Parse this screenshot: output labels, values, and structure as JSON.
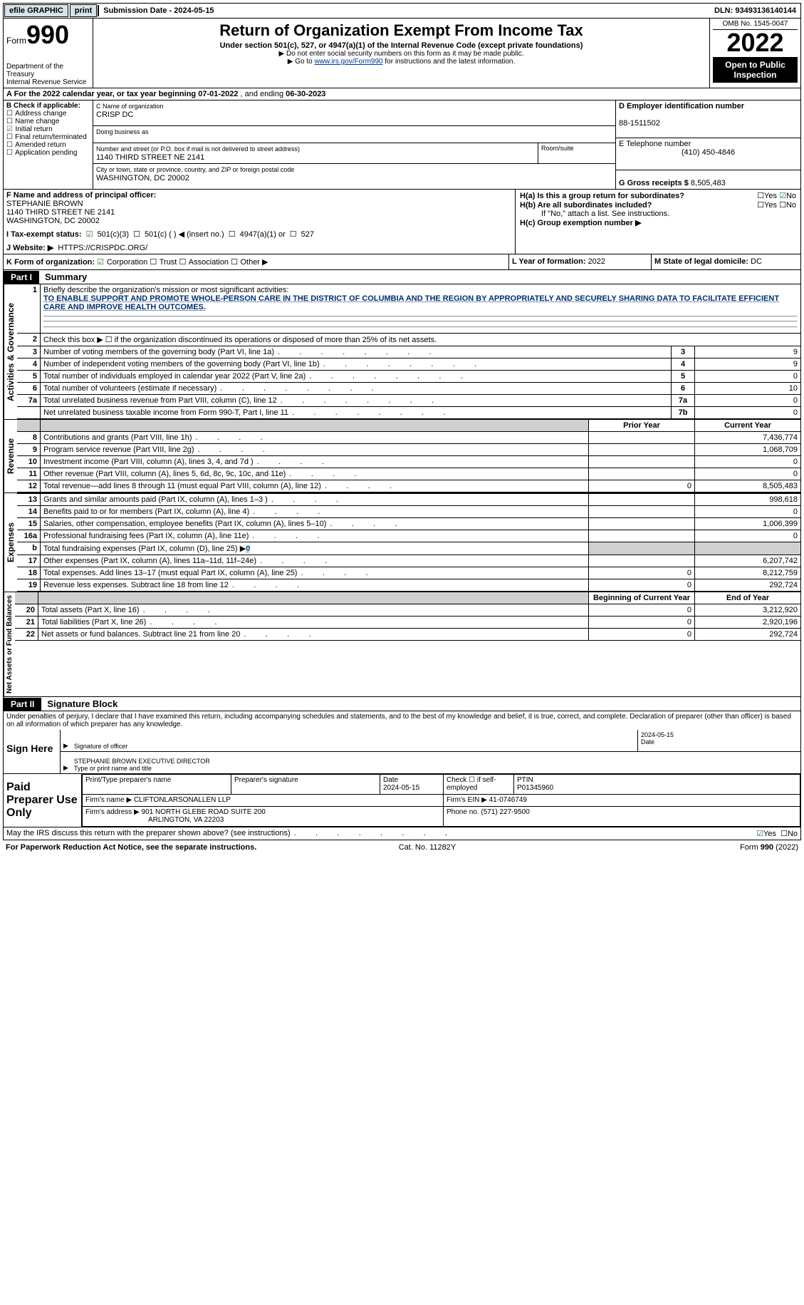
{
  "topbar": {
    "efile": "efile GRAPHIC",
    "print": "print",
    "submission_label": "Submission Date - ",
    "submission_date": "2024-05-15",
    "dln_label": "DLN: ",
    "dln": "93493136140144"
  },
  "header": {
    "form_word": "Form",
    "form_num": "990",
    "dept": "Department of the Treasury",
    "irs": "Internal Revenue Service",
    "title": "Return of Organization Exempt From Income Tax",
    "subtitle": "Under section 501(c), 527, or 4947(a)(1) of the Internal Revenue Code (except private foundations)",
    "note1": "▶ Do not enter social security numbers on this form as it may be made public.",
    "note2_pre": "▶ Go to ",
    "note2_link": "www.irs.gov/Form990",
    "note2_post": " for instructions and the latest information.",
    "omb": "OMB No. 1545-0047",
    "year": "2022",
    "open": "Open to Public Inspection"
  },
  "line_a": {
    "label_pre": "A For the 2022 calendar year, or tax year beginning ",
    "beg": "07-01-2022",
    "mid": " , and ending ",
    "end": "06-30-2023"
  },
  "col_b": {
    "title": "B Check if applicable:",
    "opts": [
      "Address change",
      "Name change",
      "Initial return",
      "Final return/terminated",
      "Amended return",
      "Application pending"
    ],
    "checked_idx": 2
  },
  "col_c": {
    "name_label": "C Name of organization",
    "name": "CRISP DC",
    "dba_label": "Doing business as",
    "street_label": "Number and street (or P.O. box if mail is not delivered to street address)",
    "room_label": "Room/suite",
    "street": "1140 THIRD STREET NE 2141",
    "city_label": "City or town, state or province, country, and ZIP or foreign postal code",
    "city": "WASHINGTON, DC  20002"
  },
  "col_d": {
    "ein_label": "D Employer identification number",
    "ein": "88-1511502",
    "tel_label": "E Telephone number",
    "tel": "(410) 450-4846",
    "gross_label": "G Gross receipts $ ",
    "gross": "8,505,483"
  },
  "row_f": {
    "label": "F Name and address of principal officer:",
    "name": "STEPHANIE BROWN",
    "street": "1140 THIRD STREET NE 2141",
    "city": "WASHINGTON, DC  20002"
  },
  "row_h": {
    "ha": "H(a)  Is this a group return for subordinates?",
    "hb": "H(b)  Are all subordinates included?",
    "hb_note": "If \"No,\" attach a list. See instructions.",
    "hc": "H(c)  Group exemption number ▶",
    "yes": "Yes",
    "no": "No"
  },
  "row_i": {
    "label": "I   Tax-exempt status:",
    "o1": "501(c)(3)",
    "o2": "501(c) (  ) ◀ (insert no.)",
    "o3": "4947(a)(1) or",
    "o4": "527"
  },
  "row_j": {
    "label": "J   Website: ▶",
    "url": "HTTPS://CRISPDC.ORG/"
  },
  "row_k": {
    "label": "K Form of organization:",
    "o1": "Corporation",
    "o2": "Trust",
    "o3": "Association",
    "o4": "Other ▶",
    "l_label": "L Year of formation: ",
    "l_val": "2022",
    "m_label": "M State of legal domicile: ",
    "m_val": "DC"
  },
  "part1": {
    "tag": "Part I",
    "title": "Summary",
    "side1": "Activities & Governance",
    "side2": "Revenue",
    "side3": "Expenses",
    "side4": "Net Assets or Fund Balances",
    "line1_label": "Briefly describe the organization's mission or most significant activities:",
    "line1_text": "TO ENABLE SUPPORT AND PROMOTE WHOLE-PERSON CARE IN THE DISTRICT OF COLUMBIA AND THE REGION BY APPROPRIATELY AND SECURELY SHARING DATA TO FACILITATE EFFICIENT CARE AND IMPROVE HEALTH OUTCOMES.",
    "line2": "Check this box ▶ ☐  if the organization discontinued its operations or disposed of more than 25% of its net assets.",
    "rows_a": [
      {
        "n": "3",
        "label": "Number of voting members of the governing body (Part VI, line 1a)",
        "box": "3",
        "val": "9"
      },
      {
        "n": "4",
        "label": "Number of independent voting members of the governing body (Part VI, line 1b)",
        "box": "4",
        "val": "9"
      },
      {
        "n": "5",
        "label": "Total number of individuals employed in calendar year 2022 (Part V, line 2a)",
        "box": "5",
        "val": "0"
      },
      {
        "n": "6",
        "label": "Total number of volunteers (estimate if necessary)",
        "box": "6",
        "val": "10"
      },
      {
        "n": "7a",
        "label": "Total unrelated business revenue from Part VIII, column (C), line 12",
        "box": "7a",
        "val": "0"
      },
      {
        "n": "",
        "label": "Net unrelated business taxable income from Form 990-T, Part I, line 11",
        "box": "7b",
        "val": "0"
      }
    ],
    "hdr_prior": "Prior Year",
    "hdr_curr": "Current Year",
    "rows_rev": [
      {
        "n": "8",
        "label": "Contributions and grants (Part VIII, line 1h)",
        "prior": "",
        "curr": "7,436,774"
      },
      {
        "n": "9",
        "label": "Program service revenue (Part VIII, line 2g)",
        "prior": "",
        "curr": "1,068,709"
      },
      {
        "n": "10",
        "label": "Investment income (Part VIII, column (A), lines 3, 4, and 7d )",
        "prior": "",
        "curr": "0"
      },
      {
        "n": "11",
        "label": "Other revenue (Part VIII, column (A), lines 5, 6d, 8c, 9c, 10c, and 11e)",
        "prior": "",
        "curr": "0"
      },
      {
        "n": "12",
        "label": "Total revenue—add lines 8 through 11 (must equal Part VIII, column (A), line 12)",
        "prior": "0",
        "curr": "8,505,483"
      }
    ],
    "rows_exp": [
      {
        "n": "13",
        "label": "Grants and similar amounts paid (Part IX, column (A), lines 1–3 )",
        "prior": "",
        "curr": "998,618"
      },
      {
        "n": "14",
        "label": "Benefits paid to or for members (Part IX, column (A), line 4)",
        "prior": "",
        "curr": "0"
      },
      {
        "n": "15",
        "label": "Salaries, other compensation, employee benefits (Part IX, column (A), lines 5–10)",
        "prior": "",
        "curr": "1,006,399"
      },
      {
        "n": "16a",
        "label": "Professional fundraising fees (Part IX, column (A), line 11e)",
        "prior": "",
        "curr": "0"
      },
      {
        "n": "b",
        "label": "Total fundraising expenses (Part IX, column (D), line 25) ▶",
        "inline": "0",
        "shade": true
      },
      {
        "n": "17",
        "label": "Other expenses (Part IX, column (A), lines 11a–11d, 11f–24e)",
        "prior": "",
        "curr": "6,207,742"
      },
      {
        "n": "18",
        "label": "Total expenses. Add lines 13–17 (must equal Part IX, column (A), line 25)",
        "prior": "0",
        "curr": "8,212,759"
      },
      {
        "n": "19",
        "label": "Revenue less expenses. Subtract line 18 from line 12",
        "prior": "0",
        "curr": "292,724"
      }
    ],
    "hdr_beg": "Beginning of Current Year",
    "hdr_end": "End of Year",
    "rows_net": [
      {
        "n": "20",
        "label": "Total assets (Part X, line 16)",
        "prior": "0",
        "curr": "3,212,920"
      },
      {
        "n": "21",
        "label": "Total liabilities (Part X, line 26)",
        "prior": "0",
        "curr": "2,920,196"
      },
      {
        "n": "22",
        "label": "Net assets or fund balances. Subtract line 21 from line 20",
        "prior": "0",
        "curr": "292,724"
      }
    ]
  },
  "part2": {
    "tag": "Part II",
    "title": "Signature Block",
    "decl": "Under penalties of perjury, I declare that I have examined this return, including accompanying schedules and statements, and to the best of my knowledge and belief, it is true, correct, and complete. Declaration of preparer (other than officer) is based on all information of which preparer has any knowledge.",
    "sign_here": "Sign Here",
    "sig_officer": "Signature of officer",
    "sig_date": "2024-05-15",
    "date_label": "Date",
    "officer_name": "STEPHANIE BROWN  EXECUTIVE DIRECTOR",
    "officer_sub": "Type or print name and title",
    "paid": "Paid Preparer Use Only",
    "prep_name_label": "Print/Type preparer's name",
    "prep_sig_label": "Preparer's signature",
    "prep_date_label": "Date",
    "prep_date": "2024-05-15",
    "check_self": "Check ☐ if self-employed",
    "ptin_label": "PTIN",
    "ptin": "P01345960",
    "firm_name_label": "Firm's name    ▶ ",
    "firm_name": "CLIFTONLARSONALLEN LLP",
    "firm_ein_label": "Firm's EIN ▶ ",
    "firm_ein": "41-0746749",
    "firm_addr_label": "Firm's address ▶ ",
    "firm_addr1": "901 NORTH GLEBE ROAD SUITE 200",
    "firm_addr2": "ARLINGTON, VA  22203",
    "phone_label": "Phone no. ",
    "phone": "(571) 227-9500",
    "discuss": "May the IRS discuss this return with the preparer shown above? (see instructions)",
    "yes": "Yes",
    "no": "No"
  },
  "footer": {
    "paperwork": "For Paperwork Reduction Act Notice, see the separate instructions.",
    "cat": "Cat. No. 11282Y",
    "formref": "Form 990 (2022)"
  }
}
